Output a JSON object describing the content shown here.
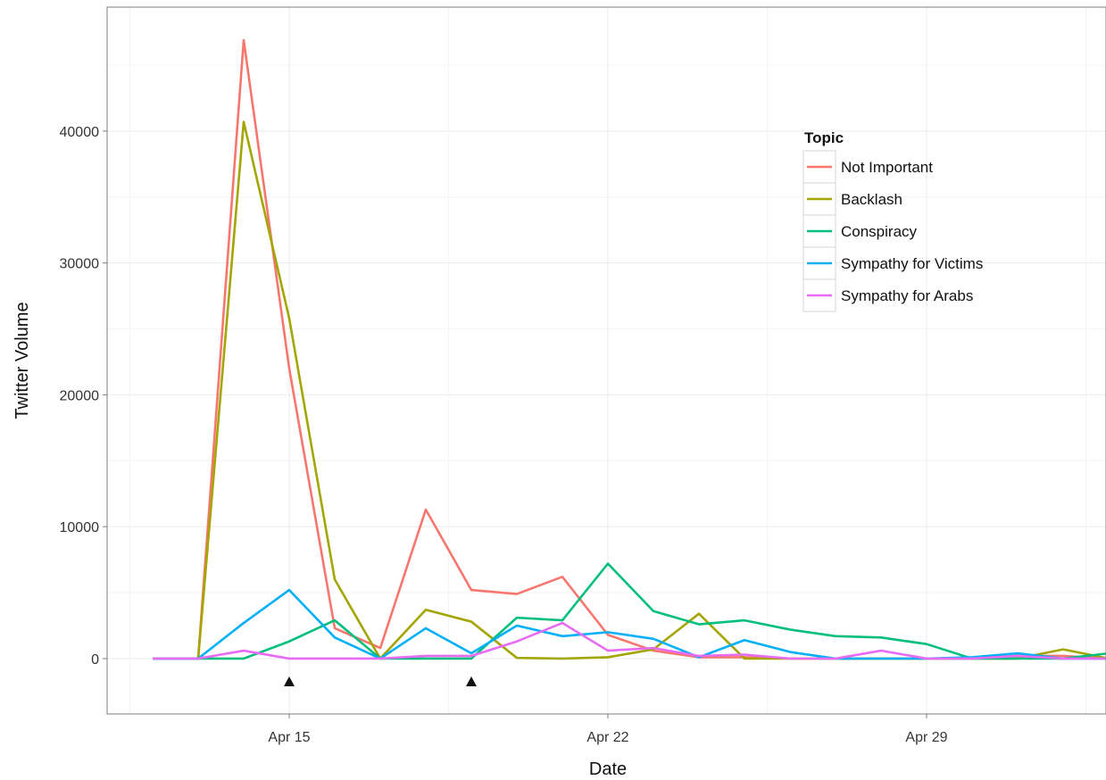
{
  "chart_data": {
    "type": "line",
    "xlabel": "Date",
    "ylabel": "Twitter Volume",
    "x": [
      "Apr 12",
      "Apr 13",
      "Apr 14",
      "Apr 15",
      "Apr 16",
      "Apr 17",
      "Apr 18",
      "Apr 19",
      "Apr 20",
      "Apr 21",
      "Apr 22",
      "Apr 23",
      "Apr 24",
      "Apr 25",
      "Apr 26",
      "Apr 27",
      "Apr 28",
      "Apr 29",
      "Apr 30",
      "May 1",
      "May 2",
      "May 3",
      "May 4"
    ],
    "x_ticks": [
      "Apr 15",
      "Apr 22",
      "Apr 29"
    ],
    "y_ticks": [
      0,
      10000,
      20000,
      30000,
      40000
    ],
    "ylim": [
      -4200,
      49400
    ],
    "grid": true,
    "legend": {
      "title": "Topic",
      "position": "top-right"
    },
    "markers": {
      "shape": "triangle",
      "x": [
        "Apr 15",
        "Apr 19"
      ]
    },
    "series": [
      {
        "name": "Not Important",
        "color": "#F8766D",
        "values": [
          0,
          0,
          46900,
          22000,
          2300,
          800,
          11300,
          5200,
          4900,
          6200,
          1800,
          600,
          100,
          100,
          0,
          0,
          0,
          0,
          0,
          200,
          200,
          0,
          0
        ]
      },
      {
        "name": "Backlash",
        "color": "#A3A500",
        "values": [
          0,
          0,
          40700,
          25800,
          6000,
          0,
          3700,
          2800,
          50,
          0,
          100,
          700,
          3400,
          0,
          0,
          0,
          0,
          0,
          0,
          0,
          700,
          0,
          0
        ]
      },
      {
        "name": "Conspiracy",
        "color": "#00BF7D",
        "values": [
          0,
          0,
          0,
          1300,
          2900,
          0,
          0,
          0,
          3100,
          2900,
          7200,
          3600,
          2600,
          2900,
          2200,
          1700,
          1600,
          1100,
          0,
          0,
          0,
          400,
          900
        ]
      },
      {
        "name": "Sympathy for Victims",
        "color": "#00B0F6",
        "values": [
          0,
          0,
          2700,
          5200,
          1600,
          0,
          2300,
          400,
          2500,
          1700,
          2000,
          1500,
          100,
          1400,
          500,
          0,
          0,
          0,
          100,
          400,
          0,
          0,
          0
        ]
      },
      {
        "name": "Sympathy for Arabs",
        "color": "#E76BF3",
        "values": [
          0,
          0,
          600,
          0,
          0,
          0,
          200,
          200,
          1300,
          2700,
          600,
          800,
          200,
          300,
          0,
          0,
          600,
          0,
          0,
          200,
          0,
          0,
          0
        ]
      }
    ]
  }
}
